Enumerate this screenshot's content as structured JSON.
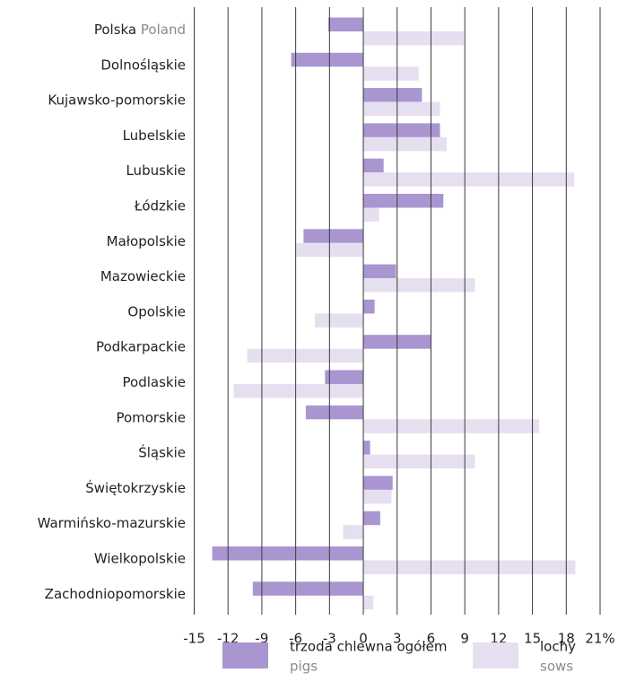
{
  "chart_data": {
    "type": "hbar",
    "categories": [
      "Polska",
      "Dolnośląskie",
      "Kujawsko-pomorskie",
      "Lubelskie",
      "Lubuskie",
      "Łódzkie",
      "Małopolskie",
      "Mazowieckie",
      "Opolskie",
      "Podkarpackie",
      "Podlaskie",
      "Pomorskie",
      "Śląskie",
      "Świętokrzyskie",
      "Warmińsko-mazurskie",
      "Wielkopolskie",
      "Zachodniopomorskie"
    ],
    "category_translations": [
      "Poland",
      null,
      null,
      null,
      null,
      null,
      null,
      null,
      null,
      null,
      null,
      null,
      null,
      null,
      null,
      null,
      null
    ],
    "series": [
      {
        "name": "trzoda chlewna ogółem",
        "name_en": "pigs",
        "color": "#a996d0",
        "values": [
          -3.1,
          -6.4,
          5.2,
          6.8,
          1.8,
          7.1,
          -5.3,
          2.9,
          1.0,
          6.0,
          -3.4,
          -5.1,
          0.6,
          2.6,
          1.5,
          -13.4,
          -9.8
        ]
      },
      {
        "name": "lochy",
        "name_en": "sows",
        "color": "#e6dff0",
        "values": [
          8.9,
          4.9,
          6.8,
          7.4,
          18.7,
          1.4,
          -6.0,
          9.9,
          -4.3,
          -10.3,
          -11.5,
          15.6,
          9.9,
          2.5,
          -1.8,
          18.8,
          0.9
        ]
      }
    ],
    "xlim": [
      -15,
      21
    ],
    "xticks": [
      -15,
      -12,
      -9,
      -6,
      -3,
      0,
      3,
      6,
      9,
      12,
      15,
      18,
      {
        "value": 21,
        "label": "21%"
      }
    ],
    "grid": true
  }
}
